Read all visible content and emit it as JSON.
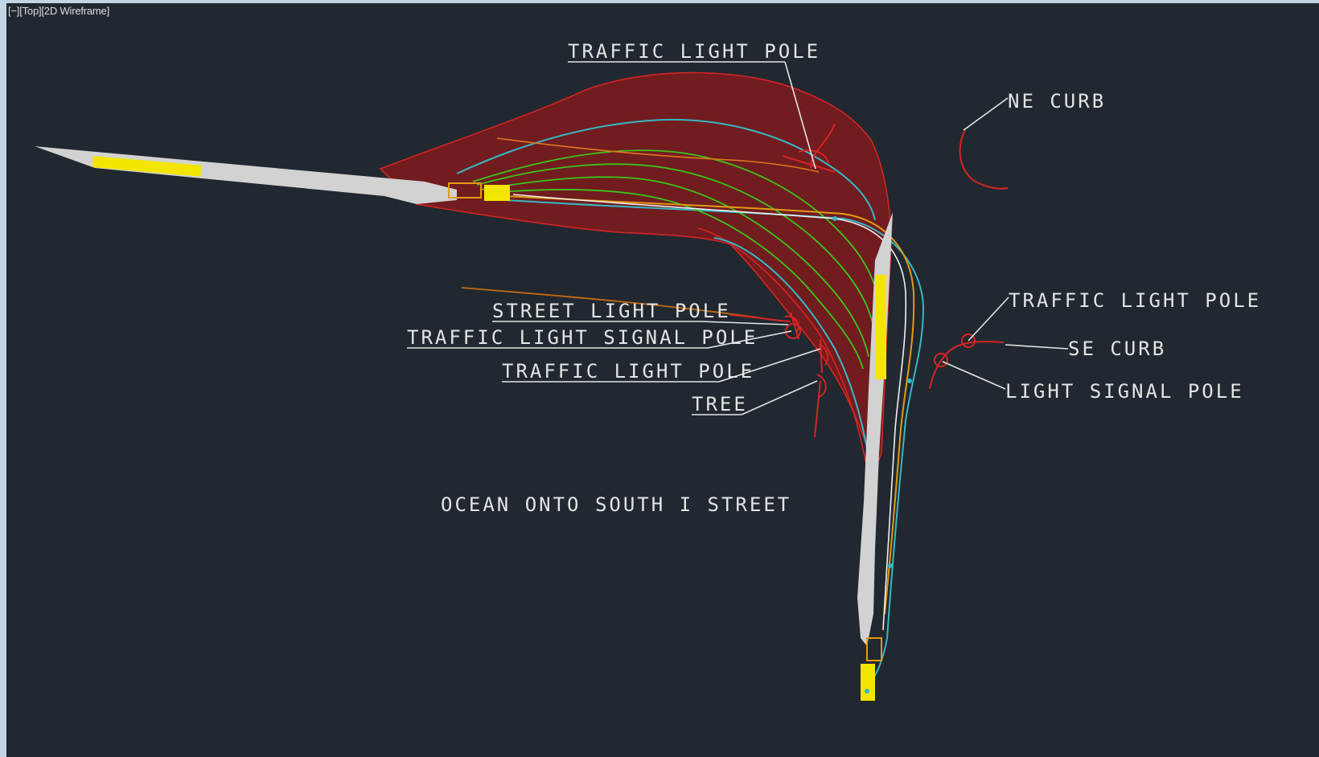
{
  "viewport": {
    "controls_label": "[−][Top][2D Wireframe]"
  },
  "labels": {
    "traffic_light_pole_top": "TRAFFIC LIGHT POLE",
    "ne_curb": "NE CURB",
    "street_light_pole": "STREET LIGHT POLE",
    "traffic_light_signal_pole": "TRAFFIC LIGHT SIGNAL POLE",
    "traffic_light_pole_mid": "TRAFFIC LIGHT POLE",
    "tree": "TREE",
    "traffic_light_pole_right": "TRAFFIC LIGHT POLE",
    "se_curb": "SE CURB",
    "light_signal_pole": "LIGHT SIGNAL POLE",
    "ocean_onto_south_i_street": "OCEAN ONTO SOUTH I STREET"
  },
  "colors": {
    "viewport_background": "#212830",
    "frame": "#c3d4e4",
    "swept_path_fill": "#8b1a1a",
    "swept_path_edge": "#d62424",
    "vehicle_body": "#d4d4d4",
    "vehicle_yellow": "#f2e600",
    "wheel_path_green": "#3cc41a",
    "wheel_path_cyan": "#35b8c4",
    "wheel_path_orange": "#e39a14",
    "label_text": "#e4e4e4"
  },
  "icons": [
    "minimize-icon"
  ]
}
